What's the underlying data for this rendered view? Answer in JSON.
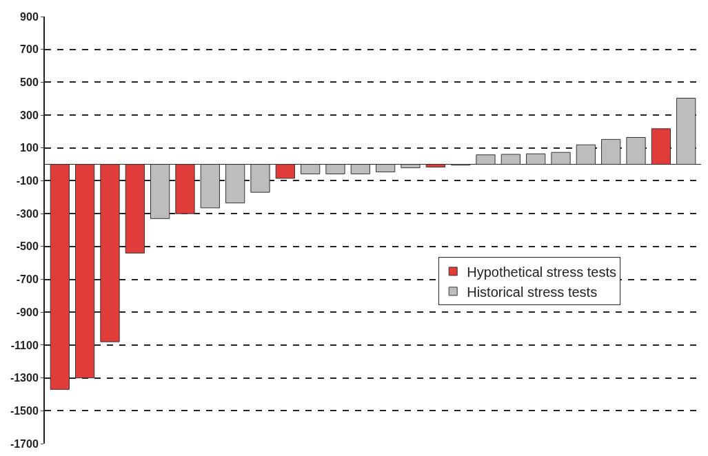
{
  "chart_data": {
    "type": "bar",
    "categories": [
      null,
      null,
      null,
      null,
      null,
      null,
      null,
      null,
      null,
      null,
      null,
      null,
      null,
      null,
      null,
      null,
      null,
      null,
      null,
      null,
      null,
      null,
      null,
      null,
      null,
      null
    ],
    "series": [
      {
        "name": "Hypothetical stress tests",
        "color": "#e03c3a",
        "values": [
          -1370,
          -1300,
          -1080,
          -540,
          null,
          -300,
          null,
          null,
          null,
          -85,
          null,
          null,
          null,
          null,
          null,
          -17,
          null,
          null,
          null,
          null,
          null,
          null,
          null,
          null,
          217,
          null
        ]
      },
      {
        "name": "Historical stress tests",
        "color": "#bdbdbd",
        "values": [
          null,
          null,
          null,
          null,
          -330,
          null,
          -265,
          -235,
          -170,
          null,
          -58,
          -58,
          -58,
          -46,
          -21,
          null,
          -5,
          58,
          61,
          64,
          73,
          119,
          152,
          164,
          null,
          403
        ]
      }
    ],
    "ylim": [
      -1700,
      900
    ],
    "yticks": [
      900,
      700,
      500,
      300,
      100,
      -100,
      -300,
      -500,
      -700,
      -900,
      -1100,
      -1300,
      -1500,
      -1700
    ],
    "grid": "y",
    "legend": "right",
    "tick_labels": "y"
  }
}
